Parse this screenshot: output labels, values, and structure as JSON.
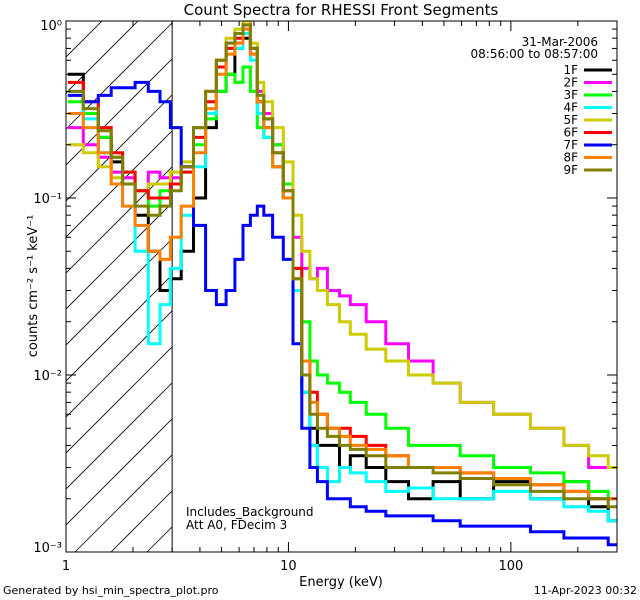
{
  "chart_data": {
    "type": "line",
    "title": "Count Spectra for RHESSI Front Segments",
    "xlabel": "Energy (keV)",
    "ylabel": "counts cm⁻² s⁻¹ keV⁻¹",
    "xscale": "log",
    "yscale": "log",
    "xlim": [
      1,
      300
    ],
    "ylim": [
      0.001,
      1
    ],
    "x_ticks": [
      {
        "value": 1,
        "label": "1"
      },
      {
        "value": 10,
        "label": "10"
      },
      {
        "value": 100,
        "label": "100"
      }
    ],
    "y_ticks": [
      {
        "value": 0.001,
        "label": "10⁻³"
      },
      {
        "value": 0.01,
        "label": "10⁻²"
      },
      {
        "value": 0.1,
        "label": "10⁻¹"
      },
      {
        "value": 1,
        "label": "10⁰"
      }
    ],
    "grid": false,
    "legend_position": "top-right",
    "date": "31-Mar-2006",
    "time_range": "08:56:00 to 08:57:00",
    "annotations": [
      "Includes_Background",
      "Att A0, FDecim 3"
    ],
    "shaded_region_xmax": 3,
    "series": [
      {
        "name": "1F",
        "color": "#000000",
        "x": [
          1.1,
          1.3,
          1.5,
          1.7,
          1.9,
          2.2,
          2.5,
          2.8,
          3.1,
          3.5,
          4,
          4.5,
          5,
          5.5,
          6,
          6.5,
          7,
          7.5,
          8,
          9,
          10,
          11,
          12,
          13,
          14,
          16,
          18,
          20,
          25,
          30,
          40,
          50,
          70,
          100,
          150,
          200,
          250,
          300
        ],
        "y": [
          0.5,
          0.3,
          0.22,
          0.16,
          0.12,
          0.08,
          0.05,
          0.03,
          0.035,
          0.05,
          0.1,
          0.25,
          0.4,
          0.5,
          0.7,
          0.8,
          0.7,
          0.35,
          0.25,
          0.15,
          0.1,
          0.03,
          0.008,
          0.005,
          0.004,
          0.004,
          0.003,
          0.0035,
          0.003,
          0.0025,
          0.002,
          0.0025,
          0.002,
          0.0025,
          0.002,
          0.0025,
          0.0018,
          0.0015
        ]
      },
      {
        "name": "2F",
        "color": "#ff00ff",
        "x": [
          1.1,
          1.3,
          1.5,
          1.7,
          1.9,
          2.2,
          2.5,
          2.8,
          3.1,
          3.5,
          4,
          4.5,
          5,
          5.5,
          6,
          6.5,
          7,
          7.5,
          8,
          9,
          10,
          11,
          12,
          13,
          14,
          16,
          18,
          20,
          25,
          30,
          40,
          50,
          70,
          100,
          150,
          200,
          250,
          300
        ],
        "y": [
          0.25,
          0.2,
          0.17,
          0.14,
          0.13,
          0.11,
          0.14,
          0.13,
          0.13,
          0.15,
          0.25,
          0.4,
          0.6,
          0.75,
          0.75,
          0.9,
          0.65,
          0.4,
          0.3,
          0.2,
          0.12,
          0.06,
          0.04,
          0.035,
          0.04,
          0.03,
          0.028,
          0.025,
          0.02,
          0.015,
          0.012,
          0.009,
          0.007,
          0.006,
          0.005,
          0.004,
          0.003,
          0.003
        ]
      },
      {
        "name": "3F",
        "color": "#00ff00",
        "x": [
          1.1,
          1.3,
          1.5,
          1.7,
          1.9,
          2.2,
          2.5,
          2.8,
          3.1,
          3.5,
          4,
          4.5,
          5,
          5.5,
          6,
          6.5,
          7,
          7.5,
          8,
          9,
          10,
          11,
          12,
          13,
          14,
          16,
          18,
          20,
          25,
          30,
          40,
          50,
          70,
          100,
          150,
          200,
          250,
          300
        ],
        "y": [
          0.35,
          0.3,
          0.22,
          0.17,
          0.14,
          0.11,
          0.09,
          0.11,
          0.12,
          0.14,
          0.2,
          0.28,
          0.4,
          0.5,
          0.45,
          0.55,
          0.4,
          0.25,
          0.22,
          0.2,
          0.12,
          0.04,
          0.02,
          0.012,
          0.01,
          0.009,
          0.008,
          0.007,
          0.006,
          0.005,
          0.004,
          0.004,
          0.0035,
          0.003,
          0.0028,
          0.0025,
          0.0022,
          0.002
        ]
      },
      {
        "name": "4F",
        "color": "#00ffff",
        "x": [
          1.1,
          1.3,
          1.5,
          1.7,
          1.9,
          2.2,
          2.5,
          2.8,
          3.1,
          3.5,
          4,
          4.5,
          5,
          5.5,
          6,
          6.5,
          7,
          7.5,
          8,
          9,
          10,
          11,
          12,
          13,
          14,
          16,
          18,
          20,
          25,
          30,
          40,
          50,
          70,
          100,
          150,
          200,
          250,
          300
        ],
        "y": [
          0.4,
          0.28,
          0.18,
          0.12,
          0.09,
          0.05,
          0.015,
          0.025,
          0.04,
          0.08,
          0.15,
          0.3,
          0.5,
          0.65,
          0.7,
          0.85,
          0.6,
          0.3,
          0.22,
          0.15,
          0.1,
          0.03,
          0.008,
          0.004,
          0.003,
          0.0025,
          0.003,
          0.0028,
          0.0025,
          0.0022,
          0.0023,
          0.002,
          0.002,
          0.0022,
          0.002,
          0.0018,
          0.0017,
          0.0015
        ]
      },
      {
        "name": "5F",
        "color": "#cccc00",
        "x": [
          1.1,
          1.3,
          1.5,
          1.7,
          1.9,
          2.2,
          2.5,
          2.8,
          3.1,
          3.5,
          4,
          4.5,
          5,
          5.5,
          6,
          6.5,
          7,
          7.5,
          8,
          9,
          10,
          11,
          12,
          13,
          14,
          16,
          18,
          20,
          25,
          30,
          40,
          50,
          70,
          100,
          150,
          200,
          250,
          300
        ],
        "y": [
          0.2,
          0.18,
          0.15,
          0.13,
          0.12,
          0.11,
          0.12,
          0.12,
          0.14,
          0.16,
          0.25,
          0.4,
          0.6,
          0.8,
          0.9,
          1.0,
          0.75,
          0.45,
          0.35,
          0.25,
          0.16,
          0.08,
          0.05,
          0.035,
          0.03,
          0.025,
          0.02,
          0.017,
          0.014,
          0.012,
          0.01,
          0.009,
          0.007,
          0.006,
          0.005,
          0.004,
          0.0035,
          0.003
        ]
      },
      {
        "name": "6F",
        "color": "#ff0000",
        "x": [
          1.1,
          1.3,
          1.5,
          1.7,
          1.9,
          2.2,
          2.5,
          2.8,
          3.1,
          3.5,
          4,
          4.5,
          5,
          5.5,
          6,
          6.5,
          7,
          7.5,
          8,
          9,
          10,
          11,
          12,
          13,
          14,
          16,
          18,
          20,
          25,
          30,
          40,
          50,
          70,
          100,
          150,
          200,
          250,
          300
        ],
        "y": [
          0.45,
          0.35,
          0.25,
          0.18,
          0.14,
          0.11,
          0.1,
          0.1,
          0.12,
          0.14,
          0.22,
          0.35,
          0.55,
          0.7,
          0.8,
          0.95,
          0.7,
          0.35,
          0.28,
          0.18,
          0.11,
          0.04,
          0.012,
          0.008,
          0.006,
          0.005,
          0.005,
          0.0045,
          0.004,
          0.0035,
          0.003,
          0.003,
          0.0028,
          0.0026,
          0.0024,
          0.0022,
          0.002,
          0.002
        ]
      },
      {
        "name": "7F",
        "color": "#0000ff",
        "x": [
          1.1,
          1.3,
          1.5,
          1.7,
          1.9,
          2.2,
          2.5,
          2.8,
          3.1,
          3.5,
          4,
          4.5,
          5,
          5.5,
          6,
          6.5,
          7,
          7.5,
          8,
          9,
          10,
          11,
          12,
          13,
          14,
          16,
          18,
          20,
          25,
          30,
          40,
          50,
          70,
          100,
          150,
          200,
          250,
          300
        ],
        "y": [
          0.38,
          0.35,
          0.38,
          0.42,
          0.42,
          0.45,
          0.4,
          0.35,
          0.25,
          0.15,
          0.07,
          0.03,
          0.025,
          0.03,
          0.045,
          0.07,
          0.08,
          0.09,
          0.08,
          0.06,
          0.045,
          0.015,
          0.005,
          0.003,
          0.0025,
          0.002,
          0.002,
          0.0018,
          0.0017,
          0.0016,
          0.0016,
          0.0015,
          0.0014,
          0.0014,
          0.0013,
          0.0012,
          0.0012,
          0.0011
        ]
      },
      {
        "name": "8F",
        "color": "#ff8000",
        "x": [
          1.1,
          1.3,
          1.5,
          1.7,
          1.9,
          2.2,
          2.5,
          2.8,
          3.1,
          3.5,
          4,
          4.5,
          5,
          5.5,
          6,
          6.5,
          7,
          7.5,
          8,
          9,
          10,
          11,
          12,
          13,
          14,
          16,
          18,
          20,
          25,
          30,
          40,
          50,
          70,
          100,
          150,
          200,
          250,
          300
        ],
        "y": [
          0.3,
          0.25,
          0.18,
          0.12,
          0.09,
          0.07,
          0.05,
          0.045,
          0.06,
          0.09,
          0.18,
          0.32,
          0.5,
          0.65,
          0.75,
          0.9,
          0.65,
          0.35,
          0.25,
          0.15,
          0.1,
          0.035,
          0.012,
          0.007,
          0.006,
          0.005,
          0.0045,
          0.004,
          0.0038,
          0.0035,
          0.003,
          0.003,
          0.0028,
          0.0026,
          0.0024,
          0.0022,
          0.002,
          0.002
        ]
      },
      {
        "name": "9F",
        "color": "#808000",
        "x": [
          1.1,
          1.3,
          1.5,
          1.7,
          1.9,
          2.2,
          2.5,
          2.8,
          3.1,
          3.5,
          4,
          4.5,
          5,
          5.5,
          6,
          6.5,
          7,
          7.5,
          8,
          9,
          10,
          11,
          12,
          13,
          14,
          16,
          18,
          20,
          25,
          30,
          40,
          50,
          70,
          100,
          150,
          200,
          250,
          300
        ],
        "y": [
          0.4,
          0.32,
          0.24,
          0.17,
          0.12,
          0.09,
          0.08,
          0.09,
          0.11,
          0.15,
          0.25,
          0.4,
          0.6,
          0.75,
          0.85,
          0.95,
          0.7,
          0.38,
          0.28,
          0.18,
          0.11,
          0.035,
          0.01,
          0.006,
          0.005,
          0.0045,
          0.004,
          0.0038,
          0.0035,
          0.003,
          0.003,
          0.0028,
          0.0026,
          0.0024,
          0.0022,
          0.002,
          0.002,
          0.0018
        ]
      }
    ]
  },
  "footer": {
    "left": "Generated by hsi_min_spectra_plot.pro",
    "right": "11-Apr-2023 00:32"
  }
}
